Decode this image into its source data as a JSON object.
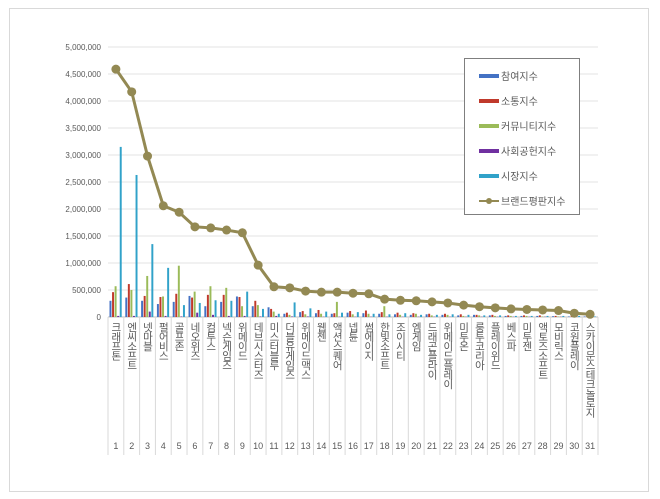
{
  "chart_data": {
    "type": "bar+line",
    "title": "",
    "xlabel": "",
    "ylabel": "",
    "ylim": [
      0,
      5000000
    ],
    "yticks": [
      "0",
      "500,000",
      "1,000,000",
      "1,500,000",
      "2,000,000",
      "2,500,000",
      "3,000,000",
      "3,500,000",
      "4,000,000",
      "4,500,000",
      "5,000,000"
    ],
    "grid": true,
    "legend_position": "top-right",
    "ranks": [
      "1",
      "2",
      "3",
      "4",
      "5",
      "6",
      "7",
      "8",
      "9",
      "10",
      "11",
      "12",
      "13",
      "14",
      "15",
      "16",
      "17",
      "18",
      "19",
      "20",
      "21",
      "22",
      "23",
      "24",
      "25",
      "26",
      "27",
      "28",
      "29",
      "30",
      "31"
    ],
    "categories": [
      "크래프톤",
      "엔씨소프트",
      "넷마블",
      "펄어비스",
      "골프존",
      "네오위즈",
      "컴투스",
      "넥슨게임즈",
      "위메이드",
      "데브시스터즈",
      "미스터블루",
      "더블유게임즈",
      "위메이드맥스",
      "웹젠",
      "액션스퀘어",
      "넵튠",
      "썸에이지",
      "한빛소프트",
      "조이시티",
      "엠게임",
      "드래곤플라이",
      "위메이드플레이",
      "미투온",
      "룽투코리아",
      "플레이위드",
      "베스파",
      "미투젠",
      "액토즈소프트",
      "모비릭스",
      "코원플레이",
      "스카이문스테크놀로지"
    ],
    "series": [
      {
        "name": "참여지수",
        "type": "bar",
        "color": "#4472c4",
        "values": [
          300000,
          360000,
          300000,
          240000,
          280000,
          390000,
          200000,
          280000,
          380000,
          200000,
          180000,
          60000,
          90000,
          70000,
          60000,
          80000,
          70000,
          60000,
          50000,
          40000,
          50000,
          40000,
          30000,
          40000,
          30000,
          20000,
          20000,
          20000,
          15000,
          10000,
          10000
        ]
      },
      {
        "name": "소통지수",
        "type": "bar",
        "color": "#c0392b",
        "values": [
          460000,
          610000,
          390000,
          370000,
          430000,
          360000,
          410000,
          410000,
          370000,
          300000,
          150000,
          80000,
          110000,
          130000,
          70000,
          110000,
          120000,
          90000,
          80000,
          70000,
          60000,
          60000,
          50000,
          40000,
          40000,
          30000,
          30000,
          30000,
          20000,
          10000,
          10000
        ]
      },
      {
        "name": "커뮤니티지수",
        "type": "bar",
        "color": "#9bbb59",
        "values": [
          570000,
          500000,
          760000,
          380000,
          950000,
          470000,
          570000,
          540000,
          200000,
          220000,
          100000,
          40000,
          50000,
          60000,
          280000,
          50000,
          60000,
          200000,
          40000,
          60000,
          30000,
          40000,
          20000,
          30000,
          20000,
          20000,
          20000,
          10000,
          10000,
          10000,
          5000
        ]
      },
      {
        "name": "사회공헌지수",
        "type": "bar",
        "color": "#7030a0",
        "values": [
          20000,
          20000,
          100000,
          20000,
          10000,
          80000,
          40000,
          20000,
          20000,
          10000,
          20000,
          10000,
          10000,
          5000,
          5000,
          5000,
          5000,
          5000,
          5000,
          5000,
          5000,
          5000,
          5000,
          5000,
          5000,
          5000,
          5000,
          5000,
          5000,
          5000,
          5000
        ]
      },
      {
        "name": "시장지수",
        "type": "bar",
        "color": "#31a2c9",
        "values": [
          3150000,
          2630000,
          1350000,
          910000,
          220000,
          260000,
          310000,
          300000,
          470000,
          150000,
          60000,
          270000,
          160000,
          100000,
          80000,
          90000,
          60000,
          50000,
          70000,
          40000,
          40000,
          50000,
          40000,
          30000,
          30000,
          20000,
          20000,
          20000,
          20000,
          20000,
          10000
        ]
      },
      {
        "name": "브랜드평판지수",
        "type": "line",
        "color": "#938953",
        "values": [
          4590000,
          4170000,
          2980000,
          2060000,
          1940000,
          1670000,
          1650000,
          1610000,
          1560000,
          960000,
          560000,
          540000,
          480000,
          460000,
          460000,
          440000,
          430000,
          330000,
          310000,
          300000,
          280000,
          260000,
          220000,
          190000,
          170000,
          150000,
          140000,
          130000,
          120000,
          70000,
          50000
        ]
      }
    ]
  }
}
